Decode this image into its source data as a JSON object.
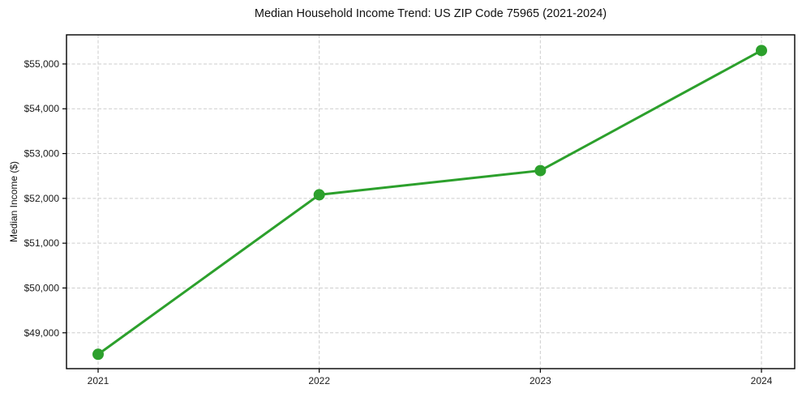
{
  "chart_data": {
    "type": "line",
    "title": "Median Household Income Trend: US ZIP Code 75965 (2021-2024)",
    "xlabel": "",
    "ylabel": "Median Income ($)",
    "x": [
      2021,
      2022,
      2023,
      2024
    ],
    "xtick_labels": [
      "2021",
      "2022",
      "2023",
      "2024"
    ],
    "series": [
      {
        "name": "Median Household Income",
        "values": [
          48520,
          52080,
          52620,
          55300
        ]
      }
    ],
    "ylim": [
      48200,
      55650
    ],
    "yticks": [
      49000,
      50000,
      51000,
      52000,
      53000,
      54000,
      55000
    ],
    "ytick_labels": [
      "$49,000",
      "$50,000",
      "$51,000",
      "$52,000",
      "$53,000",
      "$54,000",
      "$55,000"
    ],
    "grid": true,
    "grid_style": "dashed",
    "legend": false,
    "colors": {
      "line": "#2ca02c",
      "marker": "#2ca02c",
      "grid": "#cdcdcd",
      "spine": "#000000",
      "text": "#1a1a1a",
      "background": "#ffffff"
    }
  }
}
